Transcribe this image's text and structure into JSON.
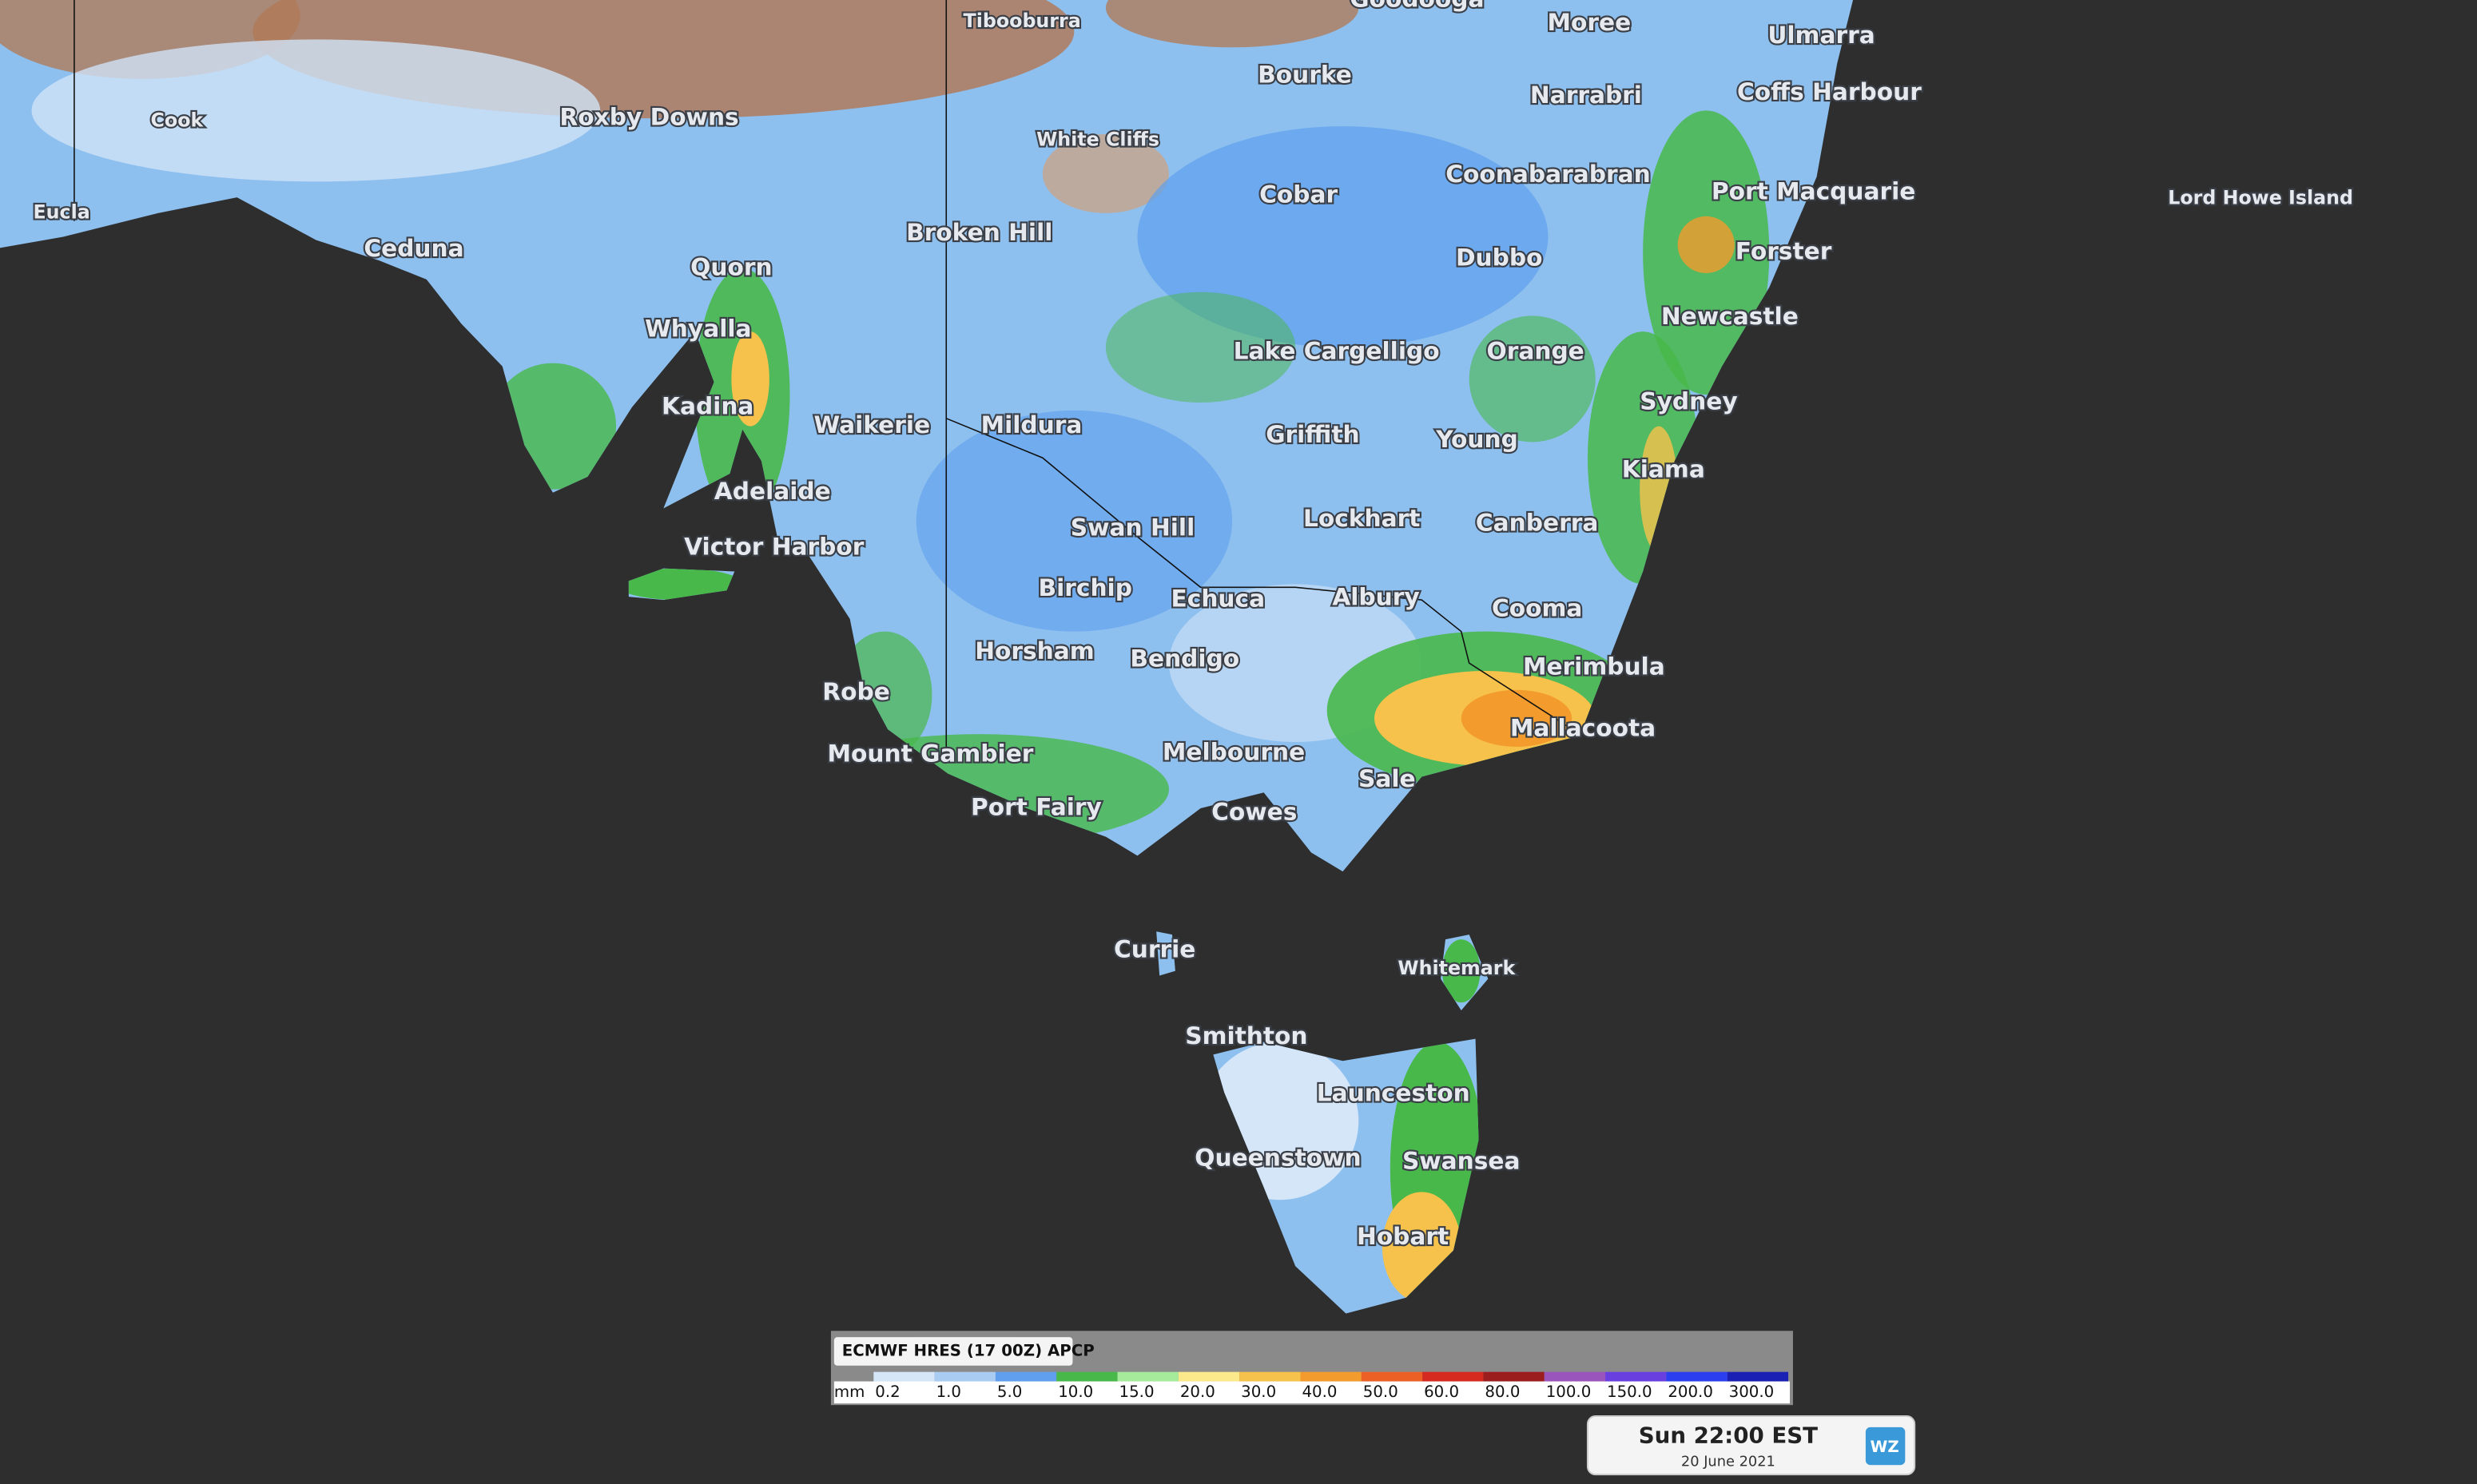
{
  "map": {
    "places": [
      "Tibooburra",
      "Goodooga",
      "Moree",
      "Ulmarra",
      "Bourke",
      "Narrabri",
      "Coffs Harbour",
      "Cook",
      "Roxby Downs",
      "White Cliffs",
      "Eucla",
      "Coonabarabran",
      "Port Macquarie",
      "Lord Howe Island",
      "Cobar",
      "Broken Hill",
      "Ceduna",
      "Forster",
      "Dubbo",
      "Quorn",
      "Newcastle",
      "Whyalla",
      "Lake Cargelligo",
      "Orange",
      "Sydney",
      "Kadina",
      "Waikerie",
      "Mildura",
      "Griffith",
      "Young",
      "Kiama",
      "Adelaide",
      "Lockhart",
      "Canberra",
      "Swan Hill",
      "Victor Harbor",
      "Birchip",
      "Echuca",
      "Albury",
      "Cooma",
      "Horsham",
      "Bendigo",
      "Merimbula",
      "Robe",
      "Mallacoota",
      "Mount Gambier",
      "Melbourne",
      "Sale",
      "Port Fairy",
      "Cowes",
      "Currie",
      "Whitemark",
      "Smithton",
      "Launceston",
      "Queenstown",
      "Swansea",
      "Hobart"
    ]
  },
  "legend": {
    "title": "ECMWF HRES (17 00Z) APCP",
    "unit": "mm",
    "items": [
      {
        "label": "0.2",
        "color": "#d4e6f8"
      },
      {
        "label": "1.0",
        "color": "#a9cdf2"
      },
      {
        "label": "5.0",
        "color": "#5f9fee"
      },
      {
        "label": "10.0",
        "color": "#48b84a"
      },
      {
        "label": "15.0",
        "color": "#a6ea9c"
      },
      {
        "label": "20.0",
        "color": "#fbe98c"
      },
      {
        "label": "30.0",
        "color": "#f6c24b"
      },
      {
        "label": "40.0",
        "color": "#f39b2c"
      },
      {
        "label": "50.0",
        "color": "#ec6026"
      },
      {
        "label": "60.0",
        "color": "#d42a1f"
      },
      {
        "label": "80.0",
        "color": "#9c1d1d"
      },
      {
        "label": "100.0",
        "color": "#9a55bd"
      },
      {
        "label": "150.0",
        "color": "#6a3fe0"
      },
      {
        "label": "200.0",
        "color": "#2b3ff0"
      },
      {
        "label": "300.0",
        "color": "#1b20b5"
      }
    ]
  },
  "timestamp": {
    "time": "Sun 22:00 EST",
    "date": "20 June 2021"
  },
  "logo": "WZ"
}
